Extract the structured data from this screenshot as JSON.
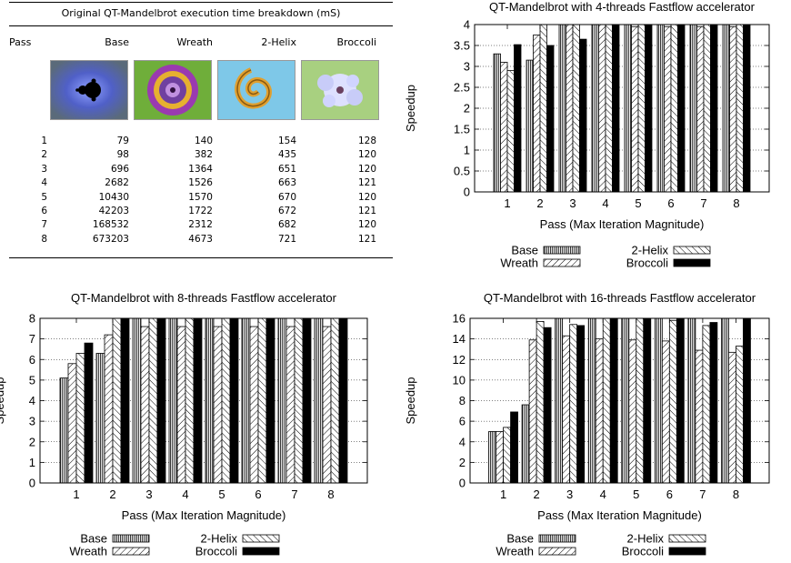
{
  "table": {
    "title": "Original QT-Mandelbrot execution time breakdown (mS)",
    "headers": [
      "Pass",
      "Base",
      "Wreath",
      "2-Helix",
      "Broccoli"
    ],
    "rows": [
      [
        "1",
        "79",
        "140",
        "154",
        "128"
      ],
      [
        "2",
        "98",
        "382",
        "435",
        "120"
      ],
      [
        "3",
        "696",
        "1364",
        "651",
        "120"
      ],
      [
        "4",
        "2682",
        "1526",
        "663",
        "121"
      ],
      [
        "5",
        "10430",
        "1570",
        "670",
        "120"
      ],
      [
        "6",
        "42203",
        "1722",
        "672",
        "121"
      ],
      [
        "7",
        "168532",
        "2312",
        "682",
        "120"
      ],
      [
        "8",
        "673203",
        "4673",
        "721",
        "121"
      ]
    ]
  },
  "chart_data": [
    {
      "type": "bar",
      "title": "QT-Mandelbrot with 4-threads Fastflow accelerator",
      "xlabel": "Pass (Max Iteration Magnitude)",
      "ylabel": "Speedup",
      "categories": [
        "1",
        "2",
        "3",
        "4",
        "5",
        "6",
        "7",
        "8"
      ],
      "ylim": [
        0,
        4
      ],
      "yticks": [
        "0",
        "0.5",
        "1",
        "1.5",
        "2",
        "2.5",
        "3",
        "3.5",
        "4"
      ],
      "grid": true,
      "legend": "bottom",
      "series": [
        {
          "name": "Base",
          "values": [
            3.3,
            3.15,
            4.0,
            4.0,
            4.0,
            4.0,
            4.0,
            4.0
          ]
        },
        {
          "name": "Wreath",
          "values": [
            3.1,
            3.75,
            4.0,
            4.0,
            3.95,
            3.95,
            3.95,
            3.95
          ]
        },
        {
          "name": "2-Helix",
          "values": [
            2.9,
            4.0,
            4.0,
            4.0,
            4.0,
            4.0,
            4.0,
            4.0
          ]
        },
        {
          "name": "Broccoli",
          "values": [
            3.52,
            3.5,
            3.65,
            4.0,
            4.0,
            4.0,
            4.0,
            4.0
          ]
        }
      ]
    },
    {
      "type": "bar",
      "title": "QT-Mandelbrot with 8-threads Fastflow accelerator",
      "xlabel": "Pass (Max Iteration Magnitude)",
      "ylabel": "Speedup",
      "categories": [
        "1",
        "2",
        "3",
        "4",
        "5",
        "6",
        "7",
        "8"
      ],
      "ylim": [
        0,
        8
      ],
      "yticks": [
        "0",
        "1",
        "2",
        "3",
        "4",
        "5",
        "6",
        "7",
        "8"
      ],
      "grid": true,
      "legend": "bottom",
      "series": [
        {
          "name": "Base",
          "values": [
            5.1,
            6.3,
            8.0,
            8.0,
            8.0,
            8.0,
            8.0,
            8.0
          ]
        },
        {
          "name": "Wreath",
          "values": [
            5.8,
            7.2,
            7.6,
            7.6,
            7.6,
            7.6,
            7.6,
            7.6
          ]
        },
        {
          "name": "2-Helix",
          "values": [
            6.3,
            8.0,
            8.0,
            8.0,
            8.0,
            8.0,
            8.0,
            8.0
          ]
        },
        {
          "name": "Broccoli",
          "values": [
            6.8,
            8.0,
            8.0,
            8.0,
            8.0,
            8.0,
            8.0,
            8.0
          ]
        }
      ]
    },
    {
      "type": "bar",
      "title": "QT-Mandelbrot with 16-threads Fastflow accelerator",
      "xlabel": "Pass (Max Iteration Magnitude)",
      "ylabel": "Speedup",
      "categories": [
        "1",
        "2",
        "3",
        "4",
        "5",
        "6",
        "7",
        "8"
      ],
      "ylim": [
        0,
        16
      ],
      "yticks": [
        "0",
        "2",
        "4",
        "6",
        "8",
        "10",
        "12",
        "14",
        "16"
      ],
      "grid": true,
      "legend": "bottom",
      "series": [
        {
          "name": "Base",
          "values": [
            5.0,
            7.6,
            16.0,
            16.0,
            16.0,
            16.0,
            16.0,
            16.0
          ]
        },
        {
          "name": "Wreath",
          "values": [
            5.0,
            13.9,
            14.3,
            14.0,
            13.9,
            13.8,
            12.9,
            12.7
          ]
        },
        {
          "name": "2-Helix",
          "values": [
            5.4,
            15.7,
            15.4,
            16.0,
            16.0,
            15.8,
            15.3,
            13.3
          ]
        },
        {
          "name": "Broccoli",
          "values": [
            6.9,
            15.1,
            15.3,
            16.0,
            16.0,
            16.0,
            15.6,
            16.0
          ]
        }
      ]
    }
  ]
}
